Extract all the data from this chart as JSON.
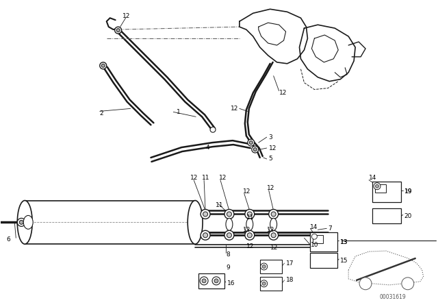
{
  "bg_color": "#ffffff",
  "fig_width": 6.4,
  "fig_height": 4.48,
  "dpi": 100,
  "line_color": "#1a1a1a",
  "label_fontsize": 6.5,
  "diagram_id": "00031619"
}
